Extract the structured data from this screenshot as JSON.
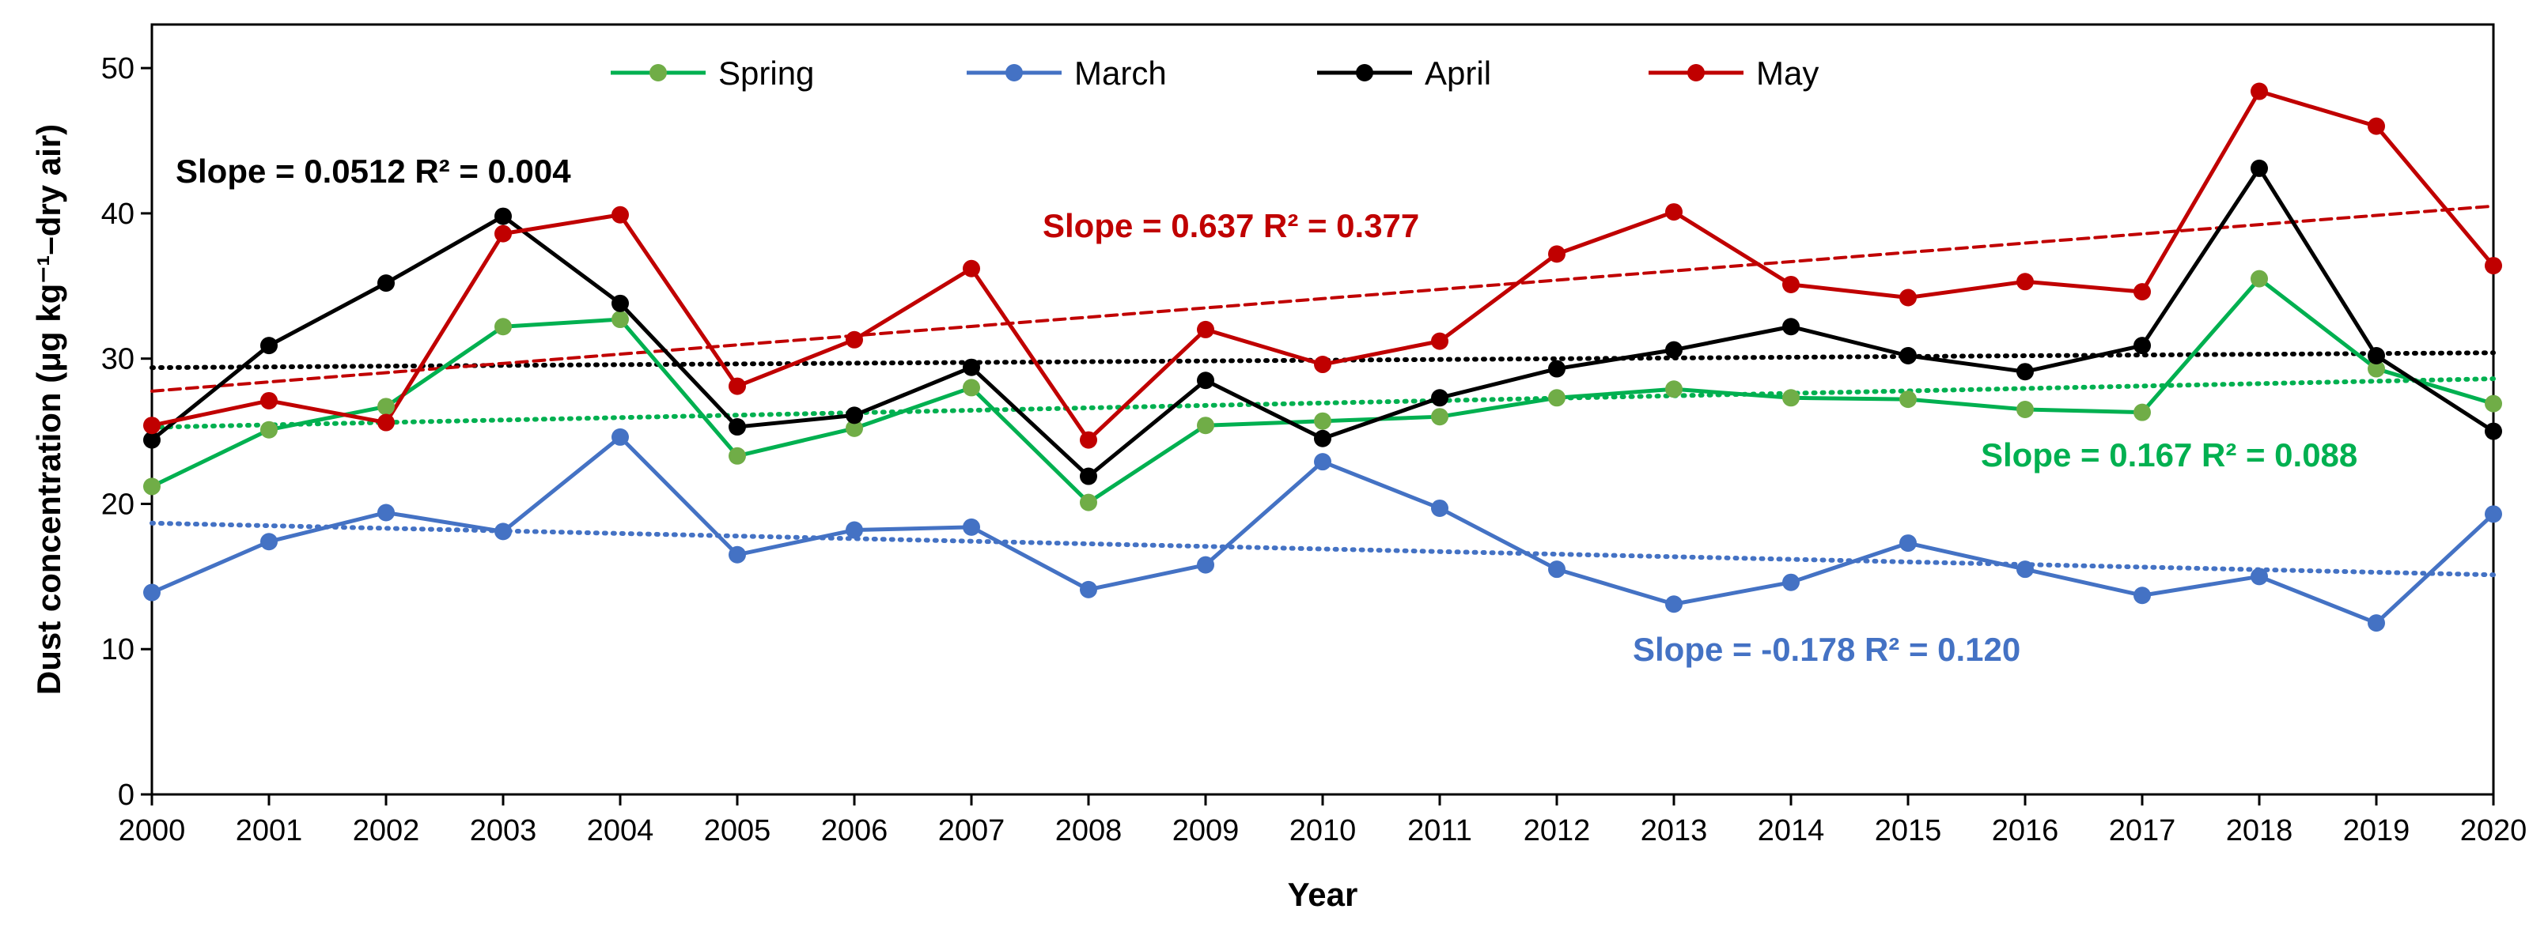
{
  "chart_data": {
    "type": "line",
    "title": "",
    "xlabel": "Year",
    "ylabel": "Dust concentration (μg kg⁻¹–dry air)",
    "ylim": [
      0,
      53
    ],
    "yticks": [
      0,
      10,
      20,
      30,
      40,
      50
    ],
    "x": [
      2000,
      2001,
      2002,
      2003,
      2004,
      2005,
      2006,
      2007,
      2008,
      2009,
      2010,
      2011,
      2012,
      2013,
      2014,
      2015,
      2016,
      2017,
      2018,
      2019,
      2020
    ],
    "xtick_labels": [
      "2000",
      "2001",
      "2002",
      "2003",
      "2004",
      "2005",
      "2006",
      "2007",
      "2008",
      "2009",
      "2010",
      "2011",
      "2012",
      "2013",
      "2014",
      "2015",
      "2016",
      "2017",
      "2018",
      "2019",
      "2020"
    ],
    "legend_position": "top",
    "grid": false,
    "series": [
      {
        "name": "Spring",
        "color": "#00b050",
        "marker_color": "#70ad47",
        "values": [
          21.2,
          25.1,
          26.7,
          32.2,
          32.7,
          23.3,
          25.2,
          28.0,
          20.1,
          25.4,
          25.7,
          26.0,
          27.3,
          27.9,
          27.3,
          27.2,
          26.5,
          26.3,
          35.5,
          29.3,
          26.9
        ],
        "trend": {
          "slope": 0.167,
          "label": "Slope = 0.167 R² = 0.088",
          "color": "#00b050"
        }
      },
      {
        "name": "March",
        "color": "#4472c4",
        "marker_color": "#4472c4",
        "values": [
          13.9,
          17.4,
          19.4,
          18.1,
          24.6,
          16.5,
          18.2,
          18.4,
          14.1,
          15.8,
          22.9,
          19.7,
          15.5,
          13.1,
          14.6,
          17.3,
          15.5,
          13.7,
          15.0,
          11.8,
          19.3
        ],
        "trend": {
          "slope": -0.178,
          "label": "Slope = -0.178 R² = 0.120",
          "color": "#4472c4"
        }
      },
      {
        "name": "April",
        "color": "#000000",
        "marker_color": "#000000",
        "values": [
          24.4,
          30.9,
          35.2,
          39.8,
          33.8,
          25.3,
          26.1,
          29.4,
          21.9,
          28.5,
          24.5,
          27.3,
          29.3,
          30.6,
          32.2,
          30.2,
          29.1,
          30.9,
          43.1,
          30.2,
          25.0
        ],
        "trend": {
          "slope": 0.0512,
          "label": "Slope = 0.0512 R² = 0.004",
          "color": "#000000"
        }
      },
      {
        "name": "May",
        "color": "#c00000",
        "marker_color": "#c00000",
        "values": [
          25.4,
          27.1,
          25.6,
          38.6,
          39.9,
          28.1,
          31.3,
          36.2,
          24.4,
          32.0,
          29.6,
          31.2,
          37.2,
          40.1,
          35.1,
          34.2,
          35.3,
          34.6,
          48.4,
          46.0,
          36.4
        ],
        "trend": {
          "slope": 0.637,
          "label": "Slope = 0.637 R² = 0.377",
          "color": "#c00000"
        }
      }
    ]
  }
}
